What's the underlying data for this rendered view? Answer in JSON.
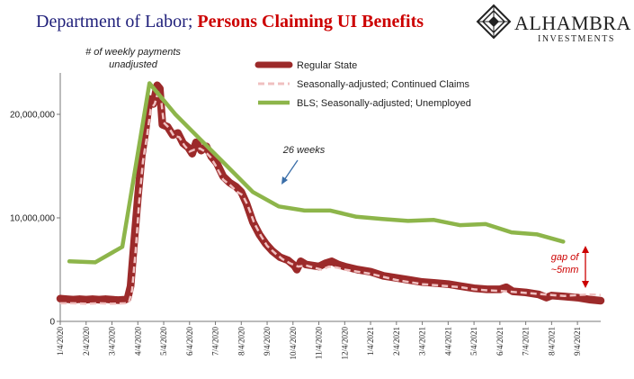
{
  "header": {
    "title_part1": "Department of Labor; ",
    "title_part2": "Persons Claiming UI Benefits",
    "title_color1": "#1f1f7a",
    "title_color2": "#cc0000",
    "logo_name": "ALHAMBRA",
    "logo_sub": "INVESTMENTS",
    "logo_icon": "diamond-lattice-icon"
  },
  "chart_data": {
    "type": "line",
    "x_tick_labels": [
      "1/4/2020",
      "2/4/2020",
      "3/4/2020",
      "4/4/2020",
      "5/4/2020",
      "6/4/2020",
      "7/4/2020",
      "8/4/2020",
      "9/4/2020",
      "10/4/2020",
      "11/4/2020",
      "12/4/2020",
      "1/4/2021",
      "2/4/2021",
      "3/4/2021",
      "4/4/2021",
      "5/4/2021",
      "6/4/2021",
      "7/4/2021",
      "8/4/2021",
      "9/4/2021"
    ],
    "x_range": [
      0,
      20.9
    ],
    "y_range": [
      0,
      24000000
    ],
    "y_ticks": [
      0,
      10000000,
      20000000
    ],
    "y_tick_labels": [
      "0",
      "10,000,000",
      "20,000,000"
    ],
    "grid": false,
    "legend_placement": "top-center",
    "colors": {
      "regular": "#9c2a2a",
      "sa": "#f0c0c0",
      "bls": "#8db54a",
      "annotation": "#cc0000",
      "arrow": "#3a6ea8"
    },
    "series": [
      {
        "name": "Regular State",
        "style": "thick",
        "points": [
          [
            0,
            2.2
          ],
          [
            0.25,
            2.15
          ],
          [
            0.5,
            2.1
          ],
          [
            0.75,
            2.15
          ],
          [
            1,
            2.1
          ],
          [
            1.25,
            2.15
          ],
          [
            1.5,
            2.1
          ],
          [
            1.75,
            2.15
          ],
          [
            2,
            2.1
          ],
          [
            2.25,
            2.05
          ],
          [
            2.5,
            2.1
          ],
          [
            2.6,
            2.2
          ],
          [
            2.72,
            3.4
          ],
          [
            2.85,
            7.5
          ],
          [
            3,
            12.0
          ],
          [
            3.15,
            16.0
          ],
          [
            3.3,
            18.5
          ],
          [
            3.45,
            21.5
          ],
          [
            3.6,
            21.0
          ],
          [
            3.75,
            22.8
          ],
          [
            3.85,
            22.5
          ],
          [
            3.95,
            19.0
          ],
          [
            4.15,
            18.8
          ],
          [
            4.35,
            18.0
          ],
          [
            4.55,
            18.2
          ],
          [
            4.75,
            17.2
          ],
          [
            4.95,
            16.8
          ],
          [
            5.1,
            16.2
          ],
          [
            5.25,
            17.3
          ],
          [
            5.45,
            16.5
          ],
          [
            5.65,
            16.9
          ],
          [
            5.85,
            15.9
          ],
          [
            6.05,
            15.3
          ],
          [
            6.3,
            14.0
          ],
          [
            6.55,
            13.4
          ],
          [
            6.8,
            13.0
          ],
          [
            7.0,
            12.5
          ],
          [
            7.2,
            11.4
          ],
          [
            7.45,
            9.6
          ],
          [
            7.7,
            8.4
          ],
          [
            7.95,
            7.5
          ],
          [
            8.2,
            6.8
          ],
          [
            8.5,
            6.2
          ],
          [
            8.8,
            5.9
          ],
          [
            9.05,
            5.4
          ],
          [
            9.15,
            5.0
          ],
          [
            9.3,
            5.8
          ],
          [
            9.5,
            5.5
          ],
          [
            9.75,
            5.4
          ],
          [
            10.0,
            5.3
          ],
          [
            10.25,
            5.6
          ],
          [
            10.5,
            5.8
          ],
          [
            10.75,
            5.5
          ],
          [
            11.0,
            5.3
          ],
          [
            11.5,
            5.0
          ],
          [
            12.0,
            4.8
          ],
          [
            12.5,
            4.4
          ],
          [
            13.0,
            4.2
          ],
          [
            13.5,
            4.0
          ],
          [
            14.0,
            3.8
          ],
          [
            14.5,
            3.7
          ],
          [
            15.0,
            3.6
          ],
          [
            15.5,
            3.4
          ],
          [
            16.0,
            3.2
          ],
          [
            16.5,
            3.1
          ],
          [
            17.0,
            3.1
          ],
          [
            17.25,
            3.3
          ],
          [
            17.5,
            2.9
          ],
          [
            18.0,
            2.8
          ],
          [
            18.5,
            2.6
          ],
          [
            18.8,
            2.3
          ],
          [
            19.0,
            2.5
          ],
          [
            19.5,
            2.4
          ],
          [
            20.0,
            2.3
          ],
          [
            20.5,
            2.1
          ],
          [
            20.9,
            2.0
          ]
        ]
      },
      {
        "name": "Seasonally-adjusted; Continued Claims",
        "style": "dashed",
        "points": [
          [
            0,
            1.75
          ],
          [
            0.5,
            1.75
          ],
          [
            1,
            1.7
          ],
          [
            1.5,
            1.75
          ],
          [
            2,
            1.7
          ],
          [
            2.5,
            1.75
          ],
          [
            2.65,
            1.8
          ],
          [
            2.78,
            3.0
          ],
          [
            2.92,
            7.0
          ],
          [
            3.05,
            11.5
          ],
          [
            3.2,
            15.5
          ],
          [
            3.35,
            17.8
          ],
          [
            3.5,
            20.5
          ],
          [
            3.65,
            21.0
          ],
          [
            3.8,
            22.3
          ],
          [
            3.9,
            21.5
          ],
          [
            4.0,
            19.2
          ],
          [
            4.2,
            18.7
          ],
          [
            4.4,
            17.9
          ],
          [
            4.6,
            17.8
          ],
          [
            4.8,
            17.0
          ],
          [
            5.0,
            16.4
          ],
          [
            5.2,
            16.6
          ],
          [
            5.4,
            16.7
          ],
          [
            5.6,
            16.4
          ],
          [
            5.8,
            15.9
          ],
          [
            6.0,
            15.1
          ],
          [
            6.3,
            13.7
          ],
          [
            6.6,
            13.1
          ],
          [
            6.85,
            12.5
          ],
          [
            7.05,
            12.2
          ],
          [
            7.25,
            11.2
          ],
          [
            7.5,
            9.5
          ],
          [
            7.75,
            8.3
          ],
          [
            8.0,
            7.3
          ],
          [
            8.3,
            6.6
          ],
          [
            8.6,
            6.0
          ],
          [
            8.9,
            5.6
          ],
          [
            9.2,
            5.3
          ],
          [
            9.5,
            5.4
          ],
          [
            9.8,
            5.2
          ],
          [
            10.1,
            5.0
          ],
          [
            10.4,
            5.3
          ],
          [
            10.7,
            5.2
          ],
          [
            11.0,
            5.0
          ],
          [
            11.5,
            4.8
          ],
          [
            12.0,
            4.6
          ],
          [
            12.5,
            4.3
          ],
          [
            13.0,
            4.0
          ],
          [
            13.5,
            3.8
          ],
          [
            14.0,
            3.6
          ],
          [
            14.5,
            3.5
          ],
          [
            15.0,
            3.4
          ],
          [
            15.5,
            3.3
          ],
          [
            16.0,
            3.1
          ],
          [
            16.5,
            3.0
          ],
          [
            17.0,
            2.95
          ],
          [
            17.5,
            2.85
          ],
          [
            18.0,
            2.75
          ],
          [
            18.5,
            2.65
          ],
          [
            19.0,
            2.55
          ],
          [
            19.5,
            2.45
          ],
          [
            20.0,
            2.55
          ],
          [
            20.5,
            2.6
          ],
          [
            20.9,
            2.55
          ]
        ]
      },
      {
        "name": "BLS; Seasonally-adjusted; Unemployed",
        "style": "medium",
        "points": [
          [
            0.35,
            5.8
          ],
          [
            1.35,
            5.7
          ],
          [
            2.4,
            7.2
          ],
          [
            3.45,
            23.0
          ],
          [
            4.45,
            20.0
          ],
          [
            5.45,
            17.5
          ],
          [
            6.45,
            15.0
          ],
          [
            7.45,
            12.5
          ],
          [
            8.45,
            11.1
          ],
          [
            9.45,
            10.7
          ],
          [
            10.45,
            10.7
          ],
          [
            11.45,
            10.1
          ],
          [
            12.45,
            9.9
          ],
          [
            13.45,
            9.7
          ],
          [
            14.45,
            9.8
          ],
          [
            15.45,
            9.3
          ],
          [
            16.45,
            9.4
          ],
          [
            17.45,
            8.6
          ],
          [
            18.45,
            8.4
          ],
          [
            19.45,
            7.7
          ]
        ]
      }
    ],
    "annotations": {
      "payments_line1": "# of weekly payments",
      "payments_line2": "unadjusted",
      "weeks": "26 weeks",
      "gap_line1": "gap of",
      "gap_line2": "~5mm"
    }
  }
}
